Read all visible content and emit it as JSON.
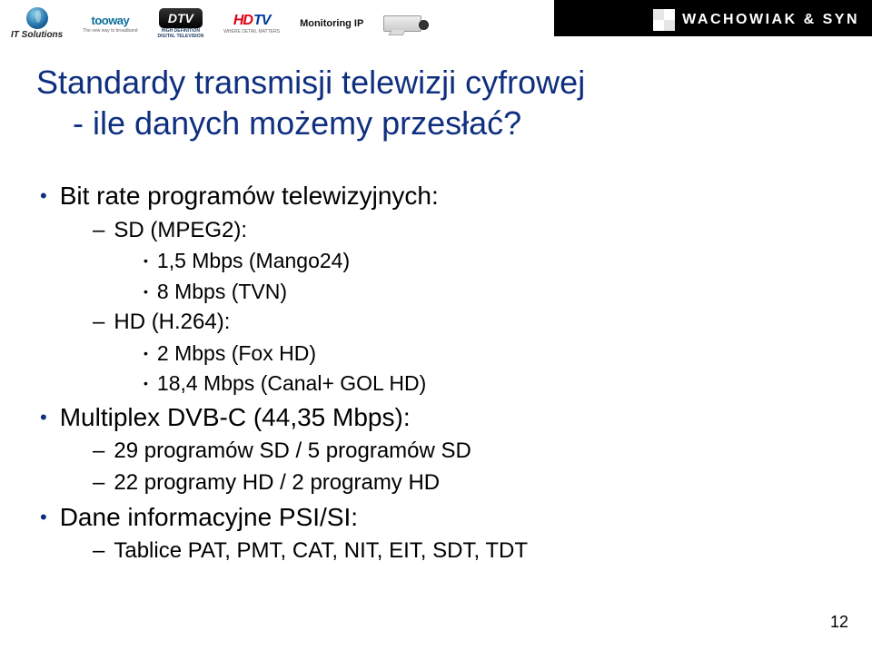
{
  "topbar": {
    "its": "IT Solutions",
    "tooway": "tooway",
    "tooway_sub": "The new way to broadband",
    "dtv": "DTV",
    "dtv_sub1": "HIGH DEFINITION",
    "dtv_sub2": "DIGITAL TELEVISION",
    "hd": "HD",
    "tv": "TV",
    "hdtv_sub": "WHERE DETAIL MATTERS",
    "mon": "Monitoring IP",
    "brand": "WACHOWIAK & SYN"
  },
  "title_line1": "Standardy transmisji telewizji cyfrowej",
  "title_line2": "- ile danych możemy przesłać?",
  "bullets": {
    "b1": "Bit rate programów telewizyjnych:",
    "b1_1": "SD (MPEG2):",
    "b1_1_1": "1,5 Mbps (Mango24)",
    "b1_1_2": "8 Mbps (TVN)",
    "b1_2": "HD (H.264):",
    "b1_2_1": "2 Mbps (Fox HD)",
    "b1_2_2": "18,4 Mbps (Canal+ GOL HD)",
    "b2": "Multiplex DVB-C (44,35 Mbps):",
    "b2_1": "29 programów SD / 5 programów SD",
    "b2_2": "22 programy HD / 2 programy HD",
    "b3": "Dane informacyjne PSI/SI:",
    "b3_1": "Tablice PAT, PMT, CAT, NIT, EIT, SDT, TDT"
  },
  "page_number": "12",
  "colors": {
    "title": "#0f2f7f",
    "body": "#000000",
    "background": "#ffffff"
  }
}
